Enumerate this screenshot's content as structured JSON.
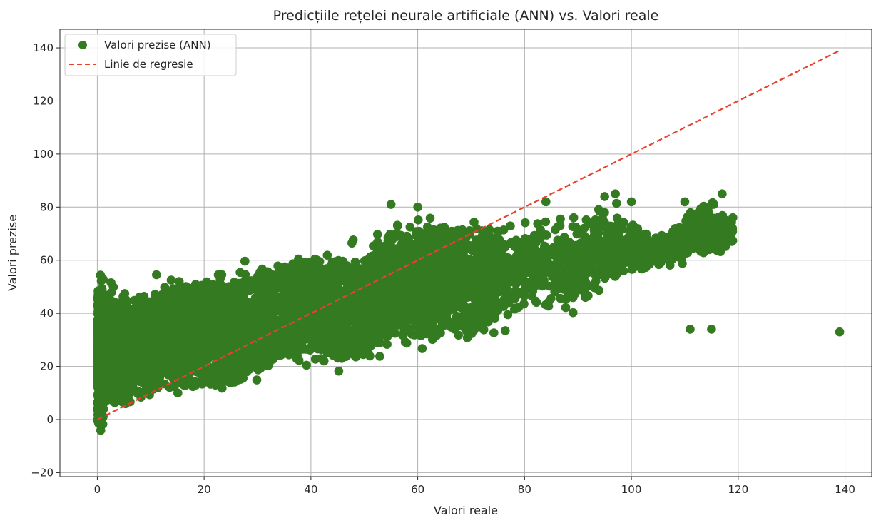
{
  "chart_data": {
    "type": "scatter",
    "title": "Predicțiile rețelei neurale artificiale (ANN) vs. Valori reale",
    "xlabel": "Valori reale",
    "ylabel": "Valori prezise",
    "xlim": [
      -7,
      145
    ],
    "ylim": [
      -21.5,
      147
    ],
    "xticks": [
      0,
      20,
      40,
      60,
      80,
      100,
      120,
      140
    ],
    "yticks": [
      -20,
      0,
      20,
      40,
      60,
      80,
      100,
      120,
      140
    ],
    "xtick_labels": [
      "0",
      "20",
      "40",
      "60",
      "80",
      "100",
      "120",
      "140"
    ],
    "ytick_labels": [
      "−20",
      "0",
      "20",
      "40",
      "60",
      "80",
      "100",
      "120",
      "140"
    ],
    "grid": true,
    "legend_position": "top-left",
    "series": [
      {
        "name": "Valori prezise (ANN)",
        "kind": "scatter",
        "color": "#347a20",
        "band": [
          [
            0,
            -14,
            64
          ],
          [
            2,
            -6,
            56
          ],
          [
            5,
            -3,
            56
          ],
          [
            10,
            1,
            56
          ],
          [
            15,
            2,
            60
          ],
          [
            20,
            3,
            61
          ],
          [
            25,
            3,
            62
          ],
          [
            30,
            8,
            66
          ],
          [
            35,
            14,
            67
          ],
          [
            40,
            17,
            70
          ],
          [
            45,
            13,
            70
          ],
          [
            50,
            14,
            70
          ],
          [
            55,
            22,
            81
          ],
          [
            60,
            20,
            82
          ],
          [
            65,
            24,
            83
          ],
          [
            70,
            22,
            83
          ],
          [
            75,
            30,
            80
          ],
          [
            80,
            33,
            80
          ],
          [
            85,
            35,
            83
          ],
          [
            90,
            34,
            80
          ],
          [
            95,
            45,
            85
          ],
          [
            100,
            51,
            81
          ],
          [
            105,
            56,
            69
          ],
          [
            110,
            57,
            80
          ],
          [
            115,
            59,
            85
          ],
          [
            119,
            62,
            77
          ]
        ],
        "outliers": [
          [
            111,
            34
          ],
          [
            115,
            34
          ],
          [
            139,
            33
          ],
          [
            117,
            85
          ],
          [
            119,
            76
          ],
          [
            97,
            85
          ],
          [
            95,
            84
          ],
          [
            55,
            81
          ],
          [
            60,
            80
          ],
          [
            84,
            82
          ],
          [
            100,
            82
          ],
          [
            110,
            82
          ]
        ]
      },
      {
        "name": "Linie de regresie",
        "kind": "line",
        "style": "dashed",
        "color": "#e8412c",
        "points": [
          [
            0,
            0
          ],
          [
            139,
            139
          ]
        ]
      }
    ]
  }
}
